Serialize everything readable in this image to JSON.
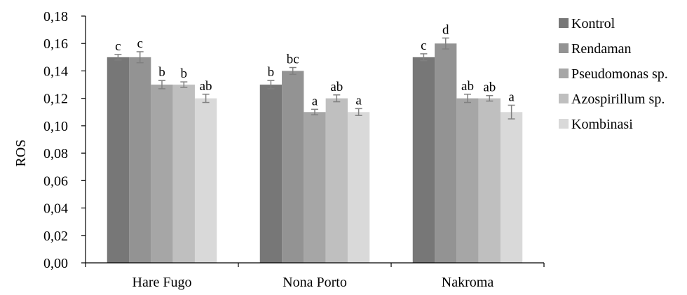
{
  "chart_data": {
    "type": "bar",
    "title": "",
    "xlabel": "",
    "ylabel": "ROS",
    "ylim": [
      0,
      0.18
    ],
    "yticks": [
      "0,00",
      "0,02",
      "0,04",
      "0,06",
      "0,08",
      "0,10",
      "0,12",
      "0,14",
      "0,16",
      "0,18"
    ],
    "grid": false,
    "legend_position": "right",
    "categories": [
      "Hare Fugo",
      "Nona Porto",
      "Nakroma"
    ],
    "series": [
      {
        "name": "Kontrol",
        "color": "#777777",
        "values": [
          0.15,
          0.13,
          0.15
        ],
        "errors": [
          0.002,
          0.003,
          0.0025
        ],
        "labels": [
          "c",
          "b",
          "c"
        ]
      },
      {
        "name": "Rendaman",
        "color": "#939393",
        "values": [
          0.15,
          0.14,
          0.16
        ],
        "errors": [
          0.004,
          0.0025,
          0.004
        ],
        "labels": [
          "c",
          "bc",
          "d"
        ]
      },
      {
        "name": "Pseudomonas sp.",
        "color": "#a6a6a6",
        "values": [
          0.13,
          0.11,
          0.12
        ],
        "errors": [
          0.003,
          0.002,
          0.003
        ],
        "labels": [
          "b",
          "a",
          "ab"
        ]
      },
      {
        "name": "Azospirillum sp.",
        "color": "#bfbfbf",
        "values": [
          0.13,
          0.12,
          0.12
        ],
        "errors": [
          0.002,
          0.0025,
          0.002
        ],
        "labels": [
          "b",
          "ab",
          "ab"
        ]
      },
      {
        "name": "Kombinasi",
        "color": "#d9d9d9",
        "values": [
          0.12,
          0.11,
          0.11
        ],
        "errors": [
          0.003,
          0.0025,
          0.005
        ],
        "labels": [
          "ab",
          "a",
          "a"
        ]
      }
    ],
    "axis_color": "#000000",
    "errorbar_color": "#808080"
  }
}
